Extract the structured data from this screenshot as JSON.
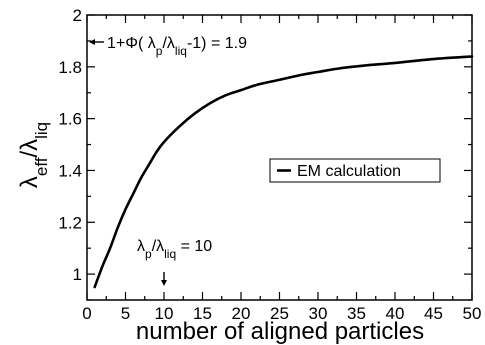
{
  "chart_data": {
    "type": "line",
    "xlabel": "number of aligned particles",
    "ylabel": {
      "main": "λ",
      "sub1": "eff",
      "mid": "/λ",
      "sub2": "liq"
    },
    "xlim": [
      0,
      50
    ],
    "ylim": [
      0.9,
      2.0
    ],
    "x_ticks": [
      "0",
      "5",
      "10",
      "15",
      "20",
      "25",
      "30",
      "35",
      "40",
      "45",
      "50"
    ],
    "y_ticks": [
      "1",
      "1.2",
      "1.4",
      "1.6",
      "1.8",
      "2"
    ],
    "grid": false,
    "legend": {
      "position": "right",
      "entries": [
        "EM calculation"
      ]
    },
    "series": [
      {
        "name": "EM calculation",
        "x": [
          1,
          2,
          3,
          4,
          5,
          6,
          7,
          8,
          9,
          10,
          12,
          14,
          16,
          18,
          20,
          22,
          25,
          28,
          30,
          33,
          36,
          40,
          45,
          50
        ],
        "y": [
          0.95,
          1.03,
          1.1,
          1.18,
          1.25,
          1.31,
          1.37,
          1.42,
          1.47,
          1.51,
          1.57,
          1.62,
          1.66,
          1.69,
          1.71,
          1.73,
          1.75,
          1.77,
          1.78,
          1.795,
          1.805,
          1.815,
          1.83,
          1.84
        ]
      }
    ],
    "annotations": [
      {
        "text": {
          "pre": "1+Φ( λ",
          "sub1": "p",
          "mid": "/λ",
          "sub2": "liq",
          "post": "-1) = 1.9"
        },
        "arrow": "left",
        "points_to": {
          "x": 0,
          "y": 1.9
        }
      },
      {
        "text": {
          "pre": "λ",
          "sub1": "p",
          "mid": "/λ",
          "sub2": "liq",
          "post": " = 10"
        },
        "arrow": "down",
        "points_to": {
          "x": 10,
          "y": 0.9
        }
      }
    ]
  }
}
